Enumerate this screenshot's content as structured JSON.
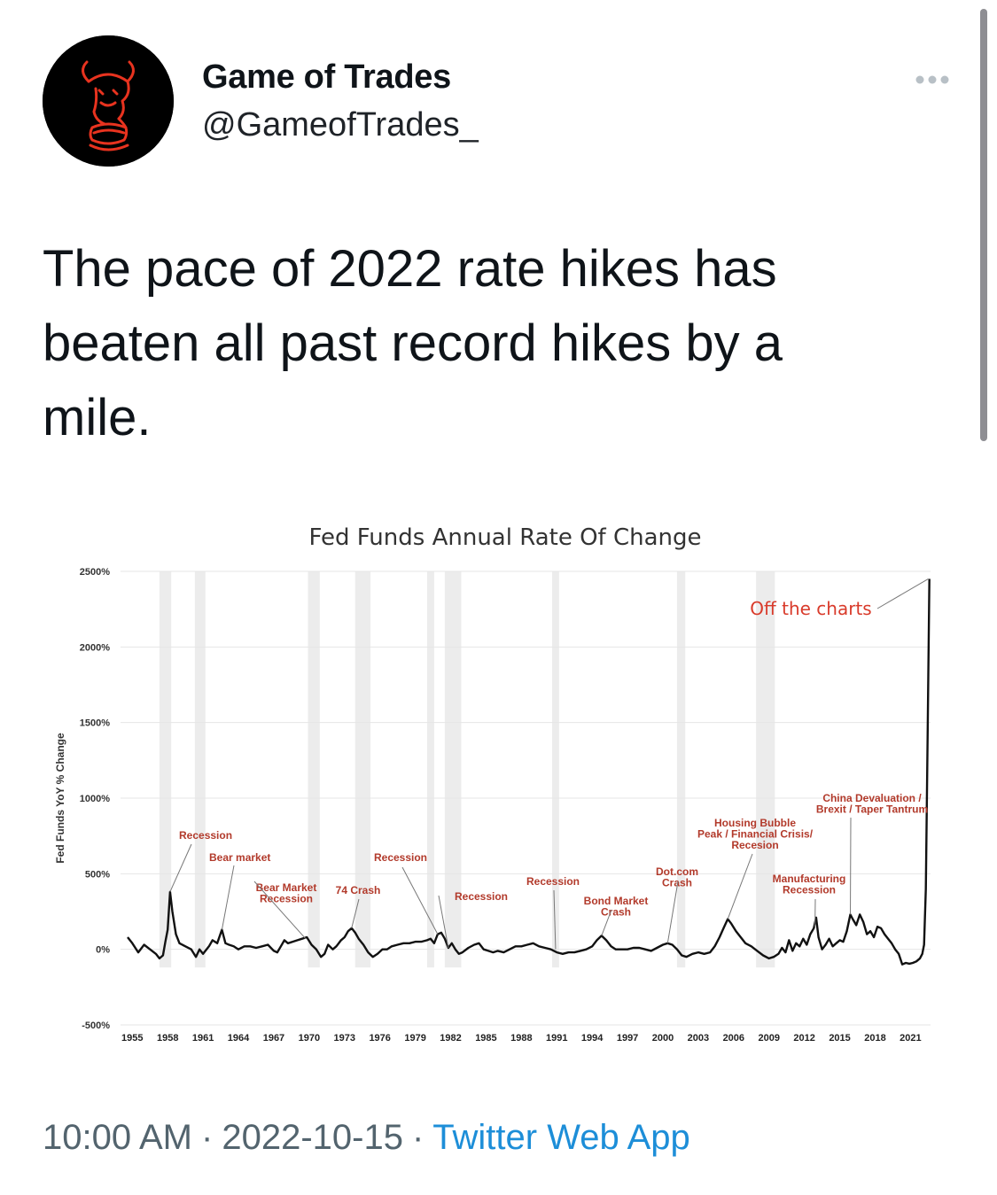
{
  "tweet": {
    "author": {
      "display_name": "Game of Trades",
      "handle": "@GameofTrades_",
      "avatar_icon": "knight-bull-logo-icon"
    },
    "more_icon": "ellipsis-icon",
    "text": "The pace of 2022 rate hikes has beaten all past record hikes by a mile.",
    "time": "10:00 AM",
    "date": "2022-10-15",
    "separator": "·",
    "source": "Twitter Web App"
  },
  "colors": {
    "text": "#0f1419",
    "meta": "#53646e",
    "link": "#1d8ed8",
    "annotation": "#b23a2b",
    "off_charts": "#d93b2b",
    "recession_band": "#ececec"
  },
  "chart_data": {
    "type": "line",
    "title": "Fed Funds Annual Rate Of Change",
    "xlabel": "",
    "ylabel": "Fed Funds YoY % Change",
    "ylim": [
      -500,
      2500
    ],
    "yticks": [
      "2500%",
      "2000%",
      "1500%",
      "1000%",
      "500%",
      "0%",
      "-500%"
    ],
    "xticks": [
      "1955",
      "1958",
      "1961",
      "1964",
      "1967",
      "1970",
      "1973",
      "1976",
      "1979",
      "1982",
      "1985",
      "1988",
      "1991",
      "1994",
      "1997",
      "2000",
      "2003",
      "2006",
      "2009",
      "2012",
      "2015",
      "2018",
      "2021"
    ],
    "xlim": [
      1954,
      2022.7
    ],
    "series": [
      {
        "name": "Fed Funds YoY % Change",
        "points": [
          [
            1954.6,
            80
          ],
          [
            1955.0,
            40
          ],
          [
            1955.5,
            -20
          ],
          [
            1956.0,
            30
          ],
          [
            1956.5,
            0
          ],
          [
            1957.0,
            -30
          ],
          [
            1957.3,
            -60
          ],
          [
            1957.6,
            -40
          ],
          [
            1957.8,
            50
          ],
          [
            1958.0,
            130
          ],
          [
            1958.2,
            380
          ],
          [
            1958.4,
            250
          ],
          [
            1958.7,
            100
          ],
          [
            1959.0,
            40
          ],
          [
            1959.5,
            20
          ],
          [
            1960.0,
            0
          ],
          [
            1960.4,
            -50
          ],
          [
            1960.7,
            0
          ],
          [
            1961.0,
            -30
          ],
          [
            1961.5,
            20
          ],
          [
            1961.8,
            60
          ],
          [
            1962.2,
            40
          ],
          [
            1962.6,
            130
          ],
          [
            1962.9,
            40
          ],
          [
            1963.2,
            30
          ],
          [
            1963.6,
            20
          ],
          [
            1964.0,
            0
          ],
          [
            1964.5,
            20
          ],
          [
            1965.0,
            20
          ],
          [
            1965.5,
            10
          ],
          [
            1966.0,
            20
          ],
          [
            1966.5,
            30
          ],
          [
            1967.0,
            -10
          ],
          [
            1967.3,
            -20
          ],
          [
            1967.6,
            20
          ],
          [
            1967.9,
            60
          ],
          [
            1968.2,
            40
          ],
          [
            1968.6,
            50
          ],
          [
            1969.0,
            60
          ],
          [
            1969.4,
            70
          ],
          [
            1969.8,
            80
          ],
          [
            1970.2,
            30
          ],
          [
            1970.6,
            0
          ],
          [
            1971.0,
            -50
          ],
          [
            1971.3,
            -30
          ],
          [
            1971.6,
            30
          ],
          [
            1972.0,
            0
          ],
          [
            1972.3,
            20
          ],
          [
            1972.7,
            60
          ],
          [
            1973.0,
            80
          ],
          [
            1973.3,
            120
          ],
          [
            1973.6,
            140
          ],
          [
            1973.9,
            110
          ],
          [
            1974.2,
            70
          ],
          [
            1974.6,
            30
          ],
          [
            1975.0,
            -20
          ],
          [
            1975.4,
            -50
          ],
          [
            1975.8,
            -30
          ],
          [
            1976.2,
            0
          ],
          [
            1976.6,
            0
          ],
          [
            1977.0,
            20
          ],
          [
            1977.5,
            30
          ],
          [
            1978.0,
            40
          ],
          [
            1978.5,
            40
          ],
          [
            1979.0,
            50
          ],
          [
            1979.5,
            50
          ],
          [
            1980.0,
            60
          ],
          [
            1980.3,
            70
          ],
          [
            1980.6,
            40
          ],
          [
            1980.9,
            100
          ],
          [
            1981.2,
            110
          ],
          [
            1981.5,
            70
          ],
          [
            1981.8,
            10
          ],
          [
            1982.1,
            40
          ],
          [
            1982.4,
            0
          ],
          [
            1982.7,
            -30
          ],
          [
            1983.0,
            -20
          ],
          [
            1983.5,
            10
          ],
          [
            1984.0,
            30
          ],
          [
            1984.4,
            40
          ],
          [
            1984.8,
            0
          ],
          [
            1985.2,
            -10
          ],
          [
            1985.6,
            -20
          ],
          [
            1986.0,
            -10
          ],
          [
            1986.5,
            -20
          ],
          [
            1987.0,
            0
          ],
          [
            1987.5,
            20
          ],
          [
            1988.0,
            20
          ],
          [
            1988.5,
            30
          ],
          [
            1989.0,
            40
          ],
          [
            1989.5,
            20
          ],
          [
            1990.0,
            10
          ],
          [
            1990.5,
            0
          ],
          [
            1991.0,
            -20
          ],
          [
            1991.5,
            -30
          ],
          [
            1992.0,
            -20
          ],
          [
            1992.5,
            -20
          ],
          [
            1993.0,
            -10
          ],
          [
            1993.5,
            0
          ],
          [
            1994.0,
            20
          ],
          [
            1994.4,
            60
          ],
          [
            1994.8,
            90
          ],
          [
            1995.2,
            60
          ],
          [
            1995.6,
            20
          ],
          [
            1996.0,
            0
          ],
          [
            1996.5,
            0
          ],
          [
            1997.0,
            0
          ],
          [
            1997.5,
            10
          ],
          [
            1998.0,
            10
          ],
          [
            1998.5,
            0
          ],
          [
            1999.0,
            -10
          ],
          [
            1999.5,
            10
          ],
          [
            2000.0,
            30
          ],
          [
            2000.4,
            40
          ],
          [
            2000.8,
            30
          ],
          [
            2001.2,
            0
          ],
          [
            2001.6,
            -40
          ],
          [
            2002.0,
            -50
          ],
          [
            2002.5,
            -30
          ],
          [
            2003.0,
            -20
          ],
          [
            2003.5,
            -30
          ],
          [
            2004.0,
            -20
          ],
          [
            2004.4,
            20
          ],
          [
            2004.8,
            80
          ],
          [
            2005.2,
            150
          ],
          [
            2005.5,
            200
          ],
          [
            2005.8,
            170
          ],
          [
            2006.2,
            120
          ],
          [
            2006.6,
            80
          ],
          [
            2007.0,
            40
          ],
          [
            2007.5,
            20
          ],
          [
            2008.0,
            -10
          ],
          [
            2008.5,
            -40
          ],
          [
            2009.0,
            -60
          ],
          [
            2009.4,
            -50
          ],
          [
            2009.8,
            -30
          ],
          [
            2010.1,
            10
          ],
          [
            2010.4,
            -20
          ],
          [
            2010.7,
            60
          ],
          [
            2011.0,
            -10
          ],
          [
            2011.3,
            40
          ],
          [
            2011.6,
            20
          ],
          [
            2011.9,
            70
          ],
          [
            2012.2,
            30
          ],
          [
            2012.5,
            100
          ],
          [
            2012.8,
            140
          ],
          [
            2013.0,
            210
          ],
          [
            2013.2,
            80
          ],
          [
            2013.5,
            0
          ],
          [
            2013.8,
            30
          ],
          [
            2014.1,
            70
          ],
          [
            2014.4,
            20
          ],
          [
            2014.7,
            40
          ],
          [
            2015.0,
            60
          ],
          [
            2015.3,
            50
          ],
          [
            2015.6,
            120
          ],
          [
            2015.9,
            230
          ],
          [
            2016.1,
            200
          ],
          [
            2016.4,
            160
          ],
          [
            2016.7,
            230
          ],
          [
            2017.0,
            180
          ],
          [
            2017.3,
            100
          ],
          [
            2017.6,
            120
          ],
          [
            2017.9,
            80
          ],
          [
            2018.2,
            150
          ],
          [
            2018.5,
            140
          ],
          [
            2018.8,
            100
          ],
          [
            2019.1,
            70
          ],
          [
            2019.4,
            40
          ],
          [
            2019.7,
            0
          ],
          [
            2020.0,
            -30
          ],
          [
            2020.3,
            -100
          ],
          [
            2020.6,
            -90
          ],
          [
            2020.9,
            -95
          ],
          [
            2021.2,
            -90
          ],
          [
            2021.5,
            -80
          ],
          [
            2021.8,
            -60
          ],
          [
            2022.0,
            -30
          ],
          [
            2022.15,
            30
          ],
          [
            2022.3,
            400
          ],
          [
            2022.45,
            1400
          ],
          [
            2022.6,
            2450
          ]
        ]
      }
    ],
    "recession_bands": [
      [
        1957.3,
        1958.3
      ],
      [
        1960.3,
        1961.2
      ],
      [
        1969.9,
        1970.9
      ],
      [
        1973.9,
        1975.2
      ],
      [
        1980.0,
        1980.6
      ],
      [
        1981.5,
        1982.9
      ],
      [
        1990.6,
        1991.2
      ],
      [
        2001.2,
        2001.9
      ],
      [
        2007.9,
        2009.5
      ]
    ],
    "annotations": [
      {
        "label": "Recession",
        "lines": [
          "Recession"
        ],
        "tip": [
          1958.2,
          380
        ]
      },
      {
        "label": "Bear market",
        "lines": [
          "Bear market"
        ],
        "tip": [
          1962.6,
          130
        ]
      },
      {
        "label": "Bear Market Recession",
        "lines": [
          "Bear Market",
          "Recession"
        ],
        "tip": [
          1969.7,
          70
        ]
      },
      {
        "label": "74 Crash",
        "lines": [
          "74 Crash"
        ],
        "tip": [
          1973.6,
          140
        ]
      },
      {
        "label": "Recession",
        "lines": [
          "Recession"
        ],
        "tip": [
          1980.9,
          100
        ]
      },
      {
        "label": "Recession",
        "lines": [
          "Recession"
        ],
        "tip": [
          1981.8,
          10
        ]
      },
      {
        "label": "Recession",
        "lines": [
          "Recession"
        ],
        "tip": [
          1990.9,
          0
        ]
      },
      {
        "label": "Bond Market Crash",
        "lines": [
          "Bond Market",
          "Crash"
        ],
        "tip": [
          1994.8,
          90
        ]
      },
      {
        "label": "Dot.com Crash",
        "lines": [
          "Dot.com",
          "Crash"
        ],
        "tip": [
          2000.4,
          40
        ]
      },
      {
        "label": "Housing Bubble Peak / Financial Crisis/ Recesion",
        "lines": [
          "Housing Bubble",
          "Peak / Financial Crisis/",
          "Recesion"
        ],
        "tip": [
          2005.5,
          200
        ]
      },
      {
        "label": "Manufacturing Recession",
        "lines": [
          "Manufacturing",
          "Recession"
        ],
        "tip": [
          2012.9,
          150
        ]
      },
      {
        "label": "China Devaluation / Brexit / Taper Tantrum",
        "lines": [
          "China Devaluation /",
          "Brexit / Taper Tantrum"
        ],
        "tip": [
          2015.9,
          230
        ]
      },
      {
        "label": "Off the charts",
        "lines": [
          "Off the charts"
        ],
        "tip": [
          2022.5,
          2450
        ]
      }
    ]
  }
}
